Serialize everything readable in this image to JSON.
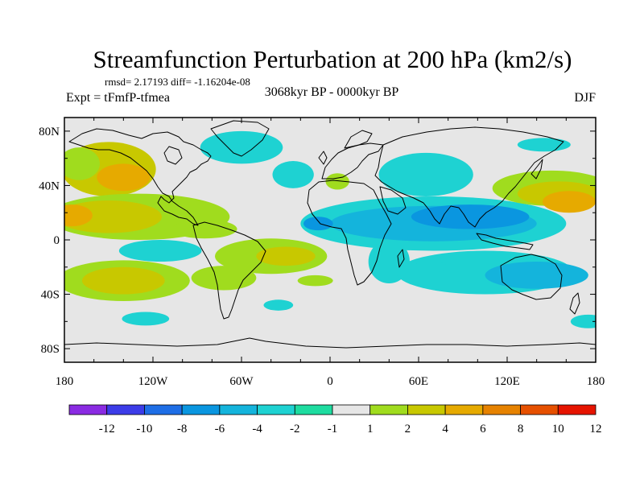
{
  "chart_data": {
    "type": "heatmap",
    "title": "Streamfunction Perturbation at 200 hPa (km2/s)",
    "stats": "rmsd= 2.17193 diff= -1.16204e-08",
    "center_label": "3068kyr BP - 0000kyr BP",
    "left_label": "Expt = tFmfP-tfmea",
    "right_label": "DJF",
    "x_ticks": [
      "180",
      "120W",
      "60W",
      "0",
      "60E",
      "120E",
      "180"
    ],
    "x_values": [
      -180,
      -120,
      -60,
      0,
      60,
      120,
      180
    ],
    "y_ticks": [
      "80N",
      "40N",
      "0",
      "40S",
      "80S"
    ],
    "y_values": [
      80,
      40,
      0,
      -40,
      -80
    ],
    "lon_range": [
      -180,
      180
    ],
    "lat_range": [
      -90,
      90
    ],
    "colorbar": {
      "labels": [
        "-12",
        "-10",
        "-8",
        "-6",
        "-4",
        "-2",
        "-1",
        "1",
        "2",
        "4",
        "6",
        "8",
        "10",
        "12"
      ],
      "colors": [
        "#8a2be2",
        "#3c3ce8",
        "#1e6ee6",
        "#0a96e0",
        "#14b4dc",
        "#1ed2d2",
        "#1edca0",
        "#e6e6e6",
        "#a0dc1e",
        "#c8c800",
        "#e6aa00",
        "#e68200",
        "#e65000",
        "#e61400"
      ]
    },
    "background_color": "#e6e6e6",
    "anomaly_regions": [
      {
        "lon": -150,
        "lat": 52,
        "rlon": 32,
        "rlat": 20,
        "level": 4
      },
      {
        "lon": -140,
        "lat": 46,
        "rlon": 18,
        "rlat": 10,
        "level": 6
      },
      {
        "lon": -170,
        "lat": 56,
        "rlon": 14,
        "rlat": 12,
        "level": 2
      },
      {
        "lon": -60,
        "lat": 68,
        "rlon": 28,
        "rlat": 12,
        "level": -2
      },
      {
        "lon": -25,
        "lat": 48,
        "rlon": 14,
        "rlat": 10,
        "level": -2
      },
      {
        "lon": -130,
        "lat": 17,
        "rlon": 62,
        "rlat": 17,
        "level": 2
      },
      {
        "lon": -150,
        "lat": 17,
        "rlon": 36,
        "rlat": 12,
        "level": 4
      },
      {
        "lon": -175,
        "lat": 18,
        "rlon": 14,
        "rlat": 8,
        "level": 6
      },
      {
        "lon": -85,
        "lat": 8,
        "rlon": 22,
        "rlat": 7,
        "level": 2
      },
      {
        "lon": -40,
        "lat": -12,
        "rlon": 38,
        "rlat": 13,
        "level": 2
      },
      {
        "lon": -30,
        "lat": -12,
        "rlon": 20,
        "rlat": 7,
        "level": 4
      },
      {
        "lon": -115,
        "lat": -8,
        "rlon": 28,
        "rlat": 8,
        "level": -2
      },
      {
        "lon": -140,
        "lat": -30,
        "rlon": 45,
        "rlat": 15,
        "level": 2
      },
      {
        "lon": -140,
        "lat": -30,
        "rlon": 28,
        "rlat": 10,
        "level": 4
      },
      {
        "lon": -72,
        "lat": -28,
        "rlon": 22,
        "rlat": 9,
        "level": 2
      },
      {
        "lon": -10,
        "lat": -30,
        "rlon": 12,
        "rlat": 4,
        "level": 2
      },
      {
        "lon": -125,
        "lat": -58,
        "rlon": 16,
        "rlat": 5,
        "level": -2
      },
      {
        "lon": -35,
        "lat": -48,
        "rlon": 10,
        "rlat": 4,
        "level": -2
      },
      {
        "lon": 5,
        "lat": 43,
        "rlon": 8,
        "rlat": 6,
        "level": 2
      },
      {
        "lon": 65,
        "lat": 48,
        "rlon": 32,
        "rlat": 16,
        "level": -2
      },
      {
        "lon": 70,
        "lat": 12,
        "rlon": 90,
        "rlat": 20,
        "level": -2
      },
      {
        "lon": 70,
        "lat": 12,
        "rlon": 70,
        "rlat": 13,
        "level": -4
      },
      {
        "lon": 95,
        "lat": 17,
        "rlon": 40,
        "rlat": 9,
        "level": -6
      },
      {
        "lon": -8,
        "lat": 12,
        "rlon": 10,
        "rlat": 5,
        "level": -6
      },
      {
        "lon": 40,
        "lat": -16,
        "rlon": 14,
        "rlat": 16,
        "level": -2
      },
      {
        "lon": 105,
        "lat": -24,
        "rlon": 60,
        "rlat": 16,
        "level": -2
      },
      {
        "lon": 140,
        "lat": -26,
        "rlon": 35,
        "rlat": 10,
        "level": -4
      },
      {
        "lon": 150,
        "lat": 38,
        "rlon": 40,
        "rlat": 13,
        "level": 2
      },
      {
        "lon": 155,
        "lat": 34,
        "rlon": 28,
        "rlat": 9,
        "level": 4
      },
      {
        "lon": 162,
        "lat": 28,
        "rlon": 18,
        "rlat": 8,
        "level": 6
      },
      {
        "lon": 145,
        "lat": 70,
        "rlon": 18,
        "rlat": 5,
        "level": -2
      },
      {
        "lon": 68,
        "lat": -20,
        "rlon": 12,
        "rlat": 4,
        "level": -2
      },
      {
        "lon": 175,
        "lat": -60,
        "rlon": 12,
        "rlat": 5,
        "level": -2
      }
    ]
  }
}
